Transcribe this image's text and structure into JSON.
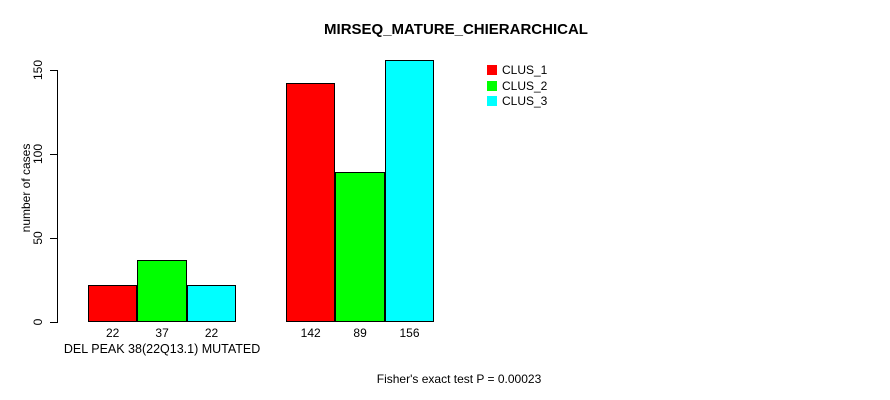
{
  "chart_data": {
    "type": "bar",
    "title": "MIRSEQ_MATURE_CHIERARCHICAL",
    "ylabel": "number of cases",
    "xlabel": "",
    "categories": [
      "DEL PEAK 38(22Q13.1) MUTATED",
      ""
    ],
    "series": [
      {
        "name": "CLUS_1",
        "color": "#ff0000",
        "values": [
          22,
          142
        ]
      },
      {
        "name": "CLUS_2",
        "color": "#00ff00",
        "values": [
          37,
          89
        ]
      },
      {
        "name": "CLUS_3",
        "color": "#00ffff",
        "values": [
          22,
          156
        ]
      }
    ],
    "yticks": [
      0,
      50,
      100,
      150
    ],
    "ylim": [
      0,
      156
    ],
    "grid": false,
    "show_value_labels": true,
    "legend": {
      "position": "top-right",
      "entries": [
        "CLUS_1",
        "CLUS_2",
        "CLUS_3"
      ]
    },
    "annotation": "Fisher's exact test P = 0.00023",
    "bar_border_color": "#000000",
    "background_color": "#ffffff",
    "text_color": "#000000"
  }
}
